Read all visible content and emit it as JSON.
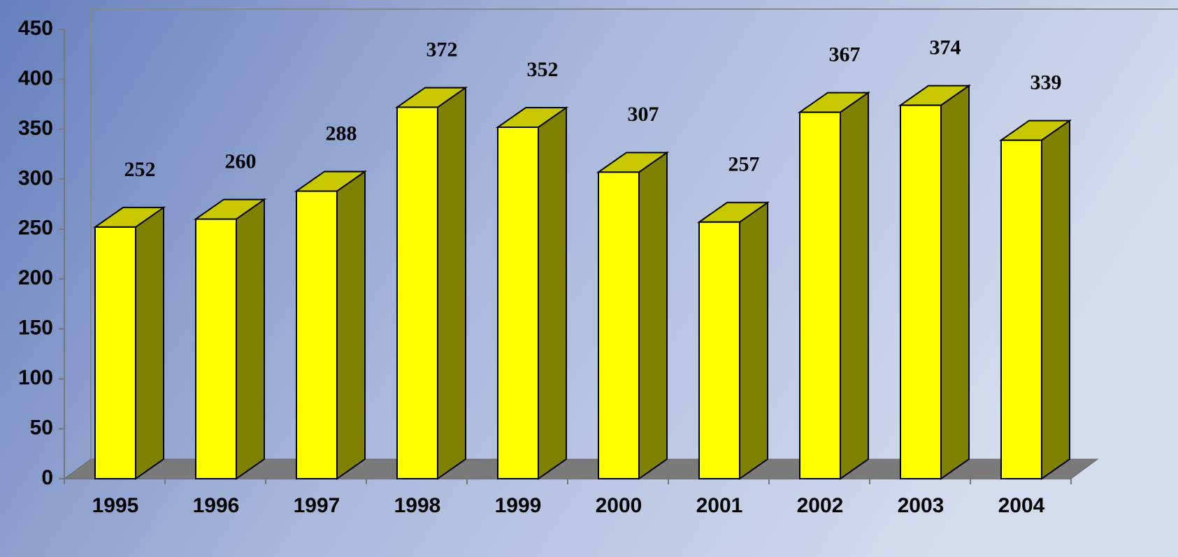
{
  "chart_data": {
    "type": "bar3d",
    "categories": [
      "1995",
      "1996",
      "1997",
      "1998",
      "1999",
      "2000",
      "2001",
      "2002",
      "2003",
      "2004"
    ],
    "values": [
      252,
      260,
      288,
      372,
      352,
      307,
      257,
      367,
      374,
      339
    ],
    "color": "#ffff00",
    "ylim": [
      0,
      450
    ],
    "yticks": [
      0,
      50,
      100,
      150,
      200,
      250,
      300,
      350,
      400,
      450
    ]
  }
}
